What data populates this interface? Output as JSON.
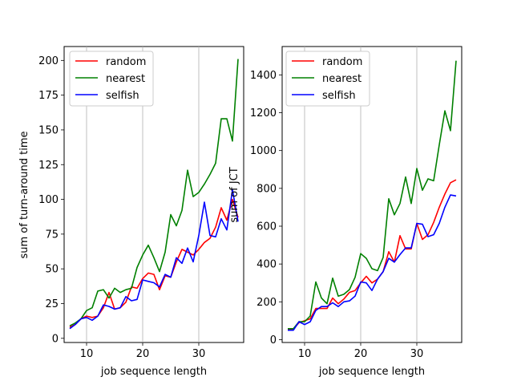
{
  "chart_data": [
    {
      "type": "line",
      "xlabel": "job sequence length",
      "ylabel": "sum of turn-around time",
      "xlim": [
        6,
        38
      ],
      "ylim": [
        -3,
        210
      ],
      "xticks": [
        10,
        20,
        30
      ],
      "yticks": [
        0,
        25,
        50,
        75,
        100,
        125,
        150,
        175,
        200
      ],
      "grid": "vertical lines at x ticks",
      "legend_position": "top-left",
      "x": [
        7,
        8,
        9,
        10,
        11,
        12,
        13,
        14,
        15,
        16,
        17,
        18,
        19,
        20,
        21,
        22,
        23,
        24,
        25,
        26,
        27,
        28,
        29,
        30,
        31,
        32,
        33,
        34,
        35,
        36,
        37
      ],
      "series": [
        {
          "name": "random",
          "color": "#ff0000",
          "values": [
            8,
            10,
            14,
            16,
            15,
            16,
            22,
            33,
            21,
            22,
            26,
            37,
            36,
            43,
            47,
            46,
            35,
            45,
            44,
            55,
            64,
            62,
            60,
            64,
            69,
            72,
            80,
            94,
            85,
            100,
            87
          ]
        },
        {
          "name": "nearest",
          "color": "#008000",
          "values": [
            9,
            11,
            14,
            20,
            22,
            34,
            35,
            29,
            36,
            33,
            35,
            36,
            51,
            60,
            67,
            58,
            48,
            62,
            89,
            81,
            92,
            121,
            102,
            105,
            111,
            118,
            126,
            158,
            158,
            142,
            201
          ]
        },
        {
          "name": "selfish",
          "color": "#0000ff",
          "values": [
            7,
            10,
            14,
            15,
            13,
            16,
            24,
            23,
            21,
            22,
            30,
            27,
            28,
            42,
            41,
            40,
            37,
            46,
            44,
            58,
            54,
            65,
            55,
            74,
            98,
            74,
            73,
            86,
            78,
            107,
            84
          ]
        }
      ]
    },
    {
      "type": "line",
      "xlabel": "job sequence length",
      "ylabel": "sum of JCT",
      "xlim": [
        6,
        38
      ],
      "ylim": [
        -15,
        1550
      ],
      "xticks": [
        10,
        20,
        30
      ],
      "yticks": [
        0,
        200,
        400,
        600,
        800,
        1000,
        1200,
        1400
      ],
      "grid": "vertical lines at x ticks",
      "legend_position": "top-left",
      "x": [
        7,
        8,
        9,
        10,
        11,
        12,
        13,
        14,
        15,
        16,
        17,
        18,
        19,
        20,
        21,
        22,
        23,
        24,
        25,
        26,
        27,
        28,
        29,
        30,
        31,
        32,
        33,
        34,
        35,
        36,
        37
      ],
      "series": [
        {
          "name": "random",
          "color": "#ff0000",
          "values": [
            55,
            55,
            90,
            100,
            110,
            165,
            165,
            165,
            220,
            190,
            215,
            250,
            260,
            300,
            335,
            300,
            320,
            360,
            465,
            410,
            550,
            480,
            480,
            615,
            530,
            555,
            620,
            700,
            770,
            830,
            845
          ]
        },
        {
          "name": "nearest",
          "color": "#008000",
          "values": [
            58,
            58,
            95,
            95,
            125,
            305,
            220,
            190,
            325,
            230,
            240,
            265,
            330,
            455,
            430,
            375,
            365,
            435,
            745,
            660,
            720,
            860,
            720,
            905,
            790,
            850,
            840,
            1030,
            1210,
            1105,
            1475
          ]
        },
        {
          "name": "selfish",
          "color": "#0000ff",
          "values": [
            50,
            50,
            95,
            80,
            95,
            155,
            175,
            175,
            195,
            175,
            200,
            205,
            230,
            305,
            300,
            260,
            320,
            360,
            430,
            410,
            450,
            485,
            485,
            615,
            610,
            545,
            555,
            615,
            700,
            765,
            760
          ]
        }
      ]
    }
  ],
  "legend_labels": [
    "random",
    "nearest",
    "selfish"
  ]
}
